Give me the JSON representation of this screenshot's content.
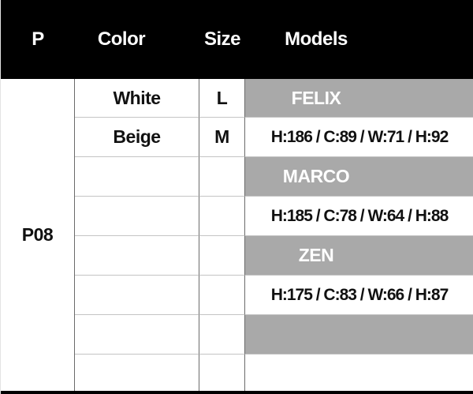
{
  "table": {
    "header": {
      "p": "P",
      "color": "Color",
      "size": "Size",
      "models": "Models"
    },
    "product_code": "P08",
    "rows": [
      {
        "color": "White",
        "size": "L",
        "model": "FELIX"
      },
      {
        "color": "Beige",
        "size": "M",
        "model": "H:186 / C:89 / W:71 / H:92"
      },
      {
        "color": "",
        "size": "",
        "model": "MARCO"
      },
      {
        "color": "",
        "size": "",
        "model": "H:185 / C:78 / W:64 / H:88"
      },
      {
        "color": "",
        "size": "",
        "model": "ZEN"
      },
      {
        "color": "",
        "size": "",
        "model": "H:175 / C:83 / W:66 / H:87"
      },
      {
        "color": "",
        "size": "",
        "model": ""
      },
      {
        "color": "",
        "size": "",
        "model": ""
      }
    ],
    "colors": {
      "header_bg": "#000000",
      "header_text": "#ffffff",
      "model_name_bg": "#a9a9a9",
      "model_name_text": "#ffffff",
      "body_text": "#111111",
      "grid_vertical": "#6b6b6b",
      "grid_horizontal": "#c4c4c4",
      "bottom_bar": "#000000"
    }
  }
}
